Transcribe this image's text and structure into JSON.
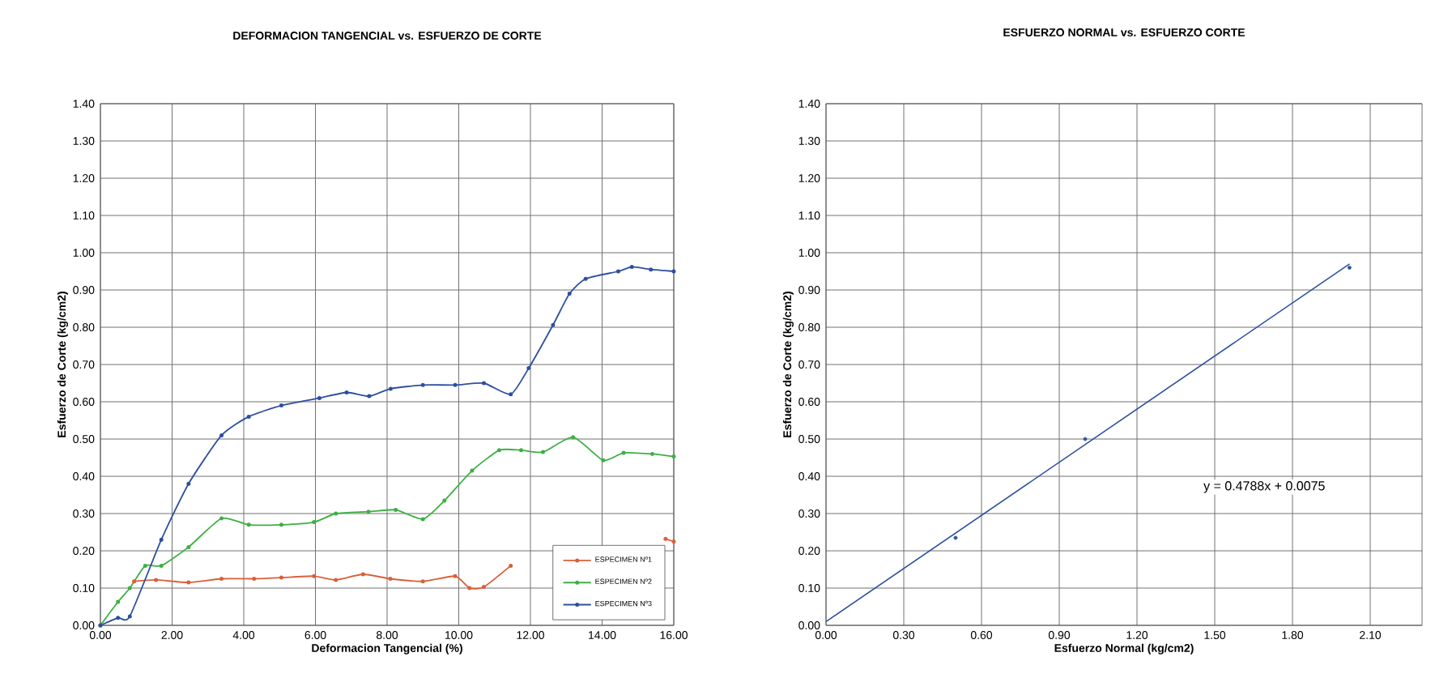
{
  "chart_data": [
    {
      "type": "line",
      "title": "DEFORMACION TANGENCIAL vs. ESFUERZO DE CORTE",
      "xlabel": "Deformacion Tangencial (%)",
      "ylabel": "Esfuerzo de Corte (kg/cm2)",
      "xlim": [
        0,
        16
      ],
      "ylim": [
        0,
        1.4
      ],
      "xticks": [
        {
          "value": 0,
          "label": "0.00"
        },
        {
          "value": 2,
          "label": "2.00"
        },
        {
          "value": 4,
          "label": "4.00"
        },
        {
          "value": 6,
          "label": "6.00"
        },
        {
          "value": 8,
          "label": "8.00"
        },
        {
          "value": 10,
          "label": "10.00"
        },
        {
          "value": 12,
          "label": "12.00"
        },
        {
          "value": 14,
          "label": "14.00"
        },
        {
          "value": 16,
          "label": "16.00"
        }
      ],
      "yticks": [
        {
          "value": 0,
          "label": "0.00"
        },
        {
          "value": 0.1,
          "label": "0.10"
        },
        {
          "value": 0.2,
          "label": "0.20"
        },
        {
          "value": 0.3,
          "label": "0.30"
        },
        {
          "value": 0.4,
          "label": "0.40"
        },
        {
          "value": 0.5,
          "label": "0.50"
        },
        {
          "value": 0.6,
          "label": "0.60"
        },
        {
          "value": 0.7,
          "label": "0.70"
        },
        {
          "value": 0.8,
          "label": "0.80"
        },
        {
          "value": 0.9,
          "label": "0.90"
        },
        {
          "value": 1.0,
          "label": "1.00"
        },
        {
          "value": 1.1,
          "label": "1.10"
        },
        {
          "value": 1.2,
          "label": "1.20"
        },
        {
          "value": 1.3,
          "label": "1.30"
        },
        {
          "value": 1.4,
          "label": "1.40"
        }
      ],
      "grid": true,
      "legend": "bottom right",
      "marker": "circle",
      "series": [
        {
          "name": "ESPECIMEN Nº1",
          "color": "#d9603b",
          "x": [
            0,
            0.49,
            0.94,
            1.55,
            2.46,
            3.38,
            4.29,
            5.05,
            5.96,
            6.57,
            7.33,
            8.09,
            9.0,
            9.9,
            10.3,
            10.7,
            11.45,
            12.5,
            13.5,
            14.5,
            15.77,
            16
          ],
          "values": [
            0,
            null,
            0.118,
            0.122,
            0.115,
            0.125,
            0.125,
            0.128,
            0.132,
            0.122,
            0.137,
            0.125,
            0.118,
            0.132,
            0.1,
            0.103,
            0.16,
            null,
            null,
            null,
            0.232,
            0.225
          ]
        },
        {
          "name": "ESPECIMEN Nº2",
          "color": "#3cb043",
          "x": [
            0,
            0.49,
            0.82,
            1.25,
            1.7,
            2.46,
            3.38,
            4.14,
            5.05,
            5.96,
            6.57,
            7.48,
            8.24,
            9.0,
            9.6,
            10.37,
            11.13,
            11.74,
            12.35,
            13.19,
            14.03,
            14.6,
            15.4,
            16
          ],
          "values": [
            0,
            0.063,
            0.1,
            0.16,
            0.16,
            0.21,
            0.287,
            0.27,
            0.27,
            0.277,
            0.3,
            0.305,
            0.31,
            0.285,
            0.335,
            0.415,
            0.47,
            0.47,
            0.465,
            0.505,
            0.443,
            0.463,
            0.46,
            0.453
          ]
        },
        {
          "name": "ESPECIMEN Nº3",
          "color": "#2e4fa0",
          "x": [
            0,
            0.49,
            0.82,
            1.7,
            2.46,
            3.38,
            4.14,
            5.05,
            6.11,
            6.87,
            7.5,
            8.1,
            9.0,
            9.9,
            10.7,
            11.45,
            11.95,
            12.63,
            13.09,
            13.54,
            14.45,
            14.83,
            15.36,
            16
          ],
          "values": [
            0,
            0.02,
            0.024,
            0.23,
            0.38,
            0.51,
            0.56,
            0.59,
            0.61,
            0.625,
            0.615,
            0.635,
            0.645,
            0.645,
            0.65,
            0.62,
            0.69,
            0.806,
            0.89,
            0.93,
            0.95,
            0.962,
            0.955,
            0.95
          ]
        }
      ]
    },
    {
      "type": "scatter",
      "title": "ESFUERZO NORMAL vs. ESFUERZO CORTE",
      "xlabel": "Esfuerzo Normal (kg/cm2)",
      "ylabel": "Esfuerzo de Corte (kg/cm2)",
      "xlim": [
        0,
        2.3
      ],
      "ylim": [
        0,
        1.4
      ],
      "xticks": [
        {
          "value": 0,
          "label": "0.00"
        },
        {
          "value": 0.3,
          "label": "0.30"
        },
        {
          "value": 0.6,
          "label": "0.60"
        },
        {
          "value": 0.9,
          "label": "0.90"
        },
        {
          "value": 1.2,
          "label": "1.20"
        },
        {
          "value": 1.5,
          "label": "1.50"
        },
        {
          "value": 1.8,
          "label": "1.80"
        },
        {
          "value": 2.1,
          "label": "2.10"
        }
      ],
      "yticks": [
        {
          "value": 0,
          "label": "0.00"
        },
        {
          "value": 0.1,
          "label": "0.10"
        },
        {
          "value": 0.2,
          "label": "0.20"
        },
        {
          "value": 0.3,
          "label": "0.30"
        },
        {
          "value": 0.4,
          "label": "0.40"
        },
        {
          "value": 0.5,
          "label": "0.50"
        },
        {
          "value": 0.6,
          "label": "0.60"
        },
        {
          "value": 0.7,
          "label": "0.70"
        },
        {
          "value": 0.8,
          "label": "0.80"
        },
        {
          "value": 0.9,
          "label": "0.90"
        },
        {
          "value": 1.0,
          "label": "1.00"
        },
        {
          "value": 1.1,
          "label": "1.10"
        },
        {
          "value": 1.2,
          "label": "1.20"
        },
        {
          "value": 1.3,
          "label": "1.30"
        },
        {
          "value": 1.4,
          "label": "1.40"
        }
      ],
      "grid": true,
      "marker": "circle",
      "annotations": [
        "y = 0.4788x + 0.0075"
      ],
      "series": [
        {
          "color": "#2e4fa0",
          "x": [
            0.5,
            1.0,
            2.02
          ],
          "values": [
            0.235,
            0.5,
            0.96
          ]
        },
        {
          "type": "line",
          "marker": "none",
          "color": "#2e4fa0",
          "x": [
            0,
            2.02
          ],
          "values": [
            0.01,
            0.97
          ]
        }
      ]
    }
  ]
}
